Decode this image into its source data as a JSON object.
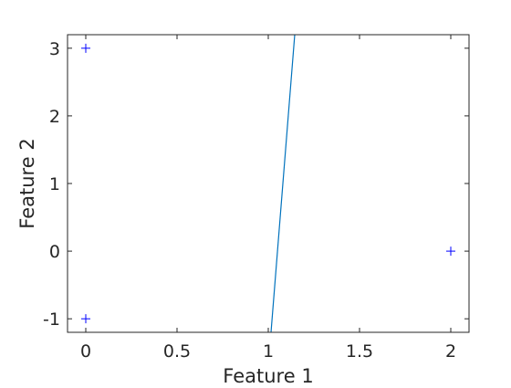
{
  "chart_data": {
    "type": "scatter",
    "title": "",
    "xlabel": "Feature 1",
    "ylabel": "Feature 2",
    "xlim": [
      -0.1,
      2.1
    ],
    "ylim": [
      -1.2,
      3.2
    ],
    "xticks": [
      0,
      0.5,
      1,
      1.5,
      2
    ],
    "yticks": [
      -1,
      0,
      1,
      2,
      3
    ],
    "xtick_labels": [
      "0",
      "0.5",
      "1",
      "1.5",
      "2"
    ],
    "ytick_labels": [
      "-1",
      "0",
      "1",
      "2",
      "3"
    ],
    "grid": false,
    "legend": "none",
    "series": [
      {
        "type": "scatter",
        "marker": "plus",
        "color": "#0000ff",
        "points": [
          {
            "x": 0,
            "y": 3
          },
          {
            "x": 0,
            "y": -1
          },
          {
            "x": 2,
            "y": 0
          }
        ]
      },
      {
        "type": "line",
        "color": "#0072bd",
        "points": [
          {
            "x": 1.015,
            "y": -1.2
          },
          {
            "x": 1.145,
            "y": 3.2
          }
        ]
      }
    ],
    "colors": {
      "axis": "#262626",
      "background": "#ffffff"
    }
  }
}
